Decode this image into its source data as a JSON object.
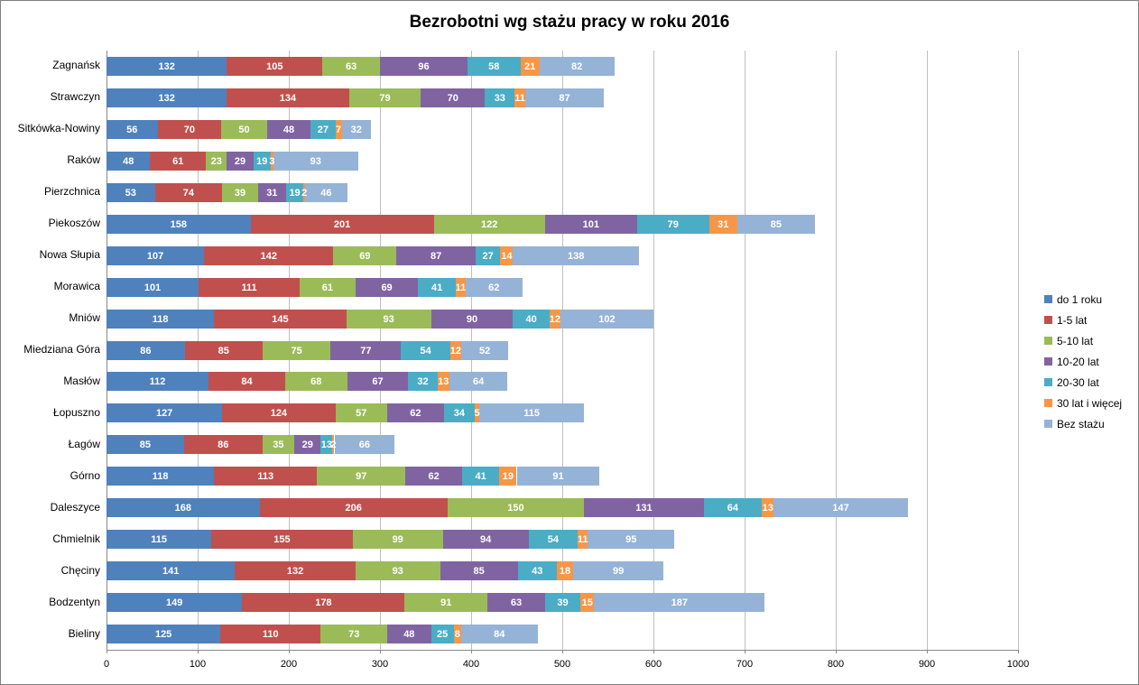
{
  "chart_data": {
    "type": "bar",
    "orientation": "horizontal-stacked",
    "title": "Bezrobotni wg stażu pracy w roku 2016",
    "xlabel": "",
    "ylabel": "",
    "xlim": [
      0,
      1000
    ],
    "xticks": [
      0,
      100,
      200,
      300,
      400,
      500,
      600,
      700,
      800,
      900,
      1000
    ],
    "grid": "vertical",
    "legend_position": "right",
    "categories": [
      "Zagnańsk",
      "Strawczyn",
      "Sitkówka-Nowiny",
      "Raków",
      "Pierzchnica",
      "Piekoszów",
      "Nowa Słupia",
      "Morawica",
      "Mniów",
      "Miedziana Góra",
      "Masłów",
      "Łopuszno",
      "Łagów",
      "Górno",
      "Daleszyce",
      "Chmielnik",
      "Chęciny",
      "Bodzentyn",
      "Bieliny"
    ],
    "series": [
      {
        "name": "do 1 roku",
        "color": "#4F81BD",
        "values": [
          132,
          132,
          56,
          48,
          53,
          158,
          107,
          101,
          118,
          86,
          112,
          127,
          85,
          118,
          168,
          115,
          141,
          149,
          125
        ]
      },
      {
        "name": "1-5 lat",
        "color": "#C0504D",
        "values": [
          105,
          134,
          70,
          61,
          74,
          201,
          142,
          111,
          145,
          85,
          84,
          124,
          86,
          113,
          206,
          155,
          132,
          178,
          110
        ]
      },
      {
        "name": "5-10 lat",
        "color": "#9BBB59",
        "values": [
          63,
          79,
          50,
          23,
          39,
          122,
          69,
          61,
          93,
          75,
          68,
          57,
          35,
          97,
          150,
          99,
          93,
          91,
          73
        ]
      },
      {
        "name": "10-20 lat",
        "color": "#8064A2",
        "values": [
          96,
          70,
          48,
          29,
          31,
          101,
          87,
          69,
          90,
          77,
          67,
          62,
          29,
          62,
          131,
          94,
          85,
          63,
          48
        ]
      },
      {
        "name": "20-30 lat",
        "color": "#4BACC6",
        "values": [
          58,
          33,
          27,
          19,
          19,
          79,
          27,
          41,
          40,
          54,
          32,
          34,
          13,
          41,
          64,
          54,
          43,
          39,
          25
        ]
      },
      {
        "name": "30 lat i więcej",
        "color": "#F79646",
        "values": [
          21,
          11,
          7,
          3,
          2,
          31,
          14,
          11,
          12,
          12,
          13,
          5,
          2,
          19,
          13,
          11,
          18,
          15,
          8
        ]
      },
      {
        "name": "Bez stażu",
        "color": "#95B3D7",
        "values": [
          82,
          87,
          32,
          93,
          46,
          85,
          138,
          62,
          102,
          52,
          64,
          115,
          66,
          91,
          147,
          95,
          99,
          187,
          84
        ]
      }
    ],
    "colors": {
      "gridline": "#BFBFBF",
      "axis": "#898989",
      "data_label": "#FFFFFF",
      "text": "#000000",
      "border": "#808080"
    }
  }
}
